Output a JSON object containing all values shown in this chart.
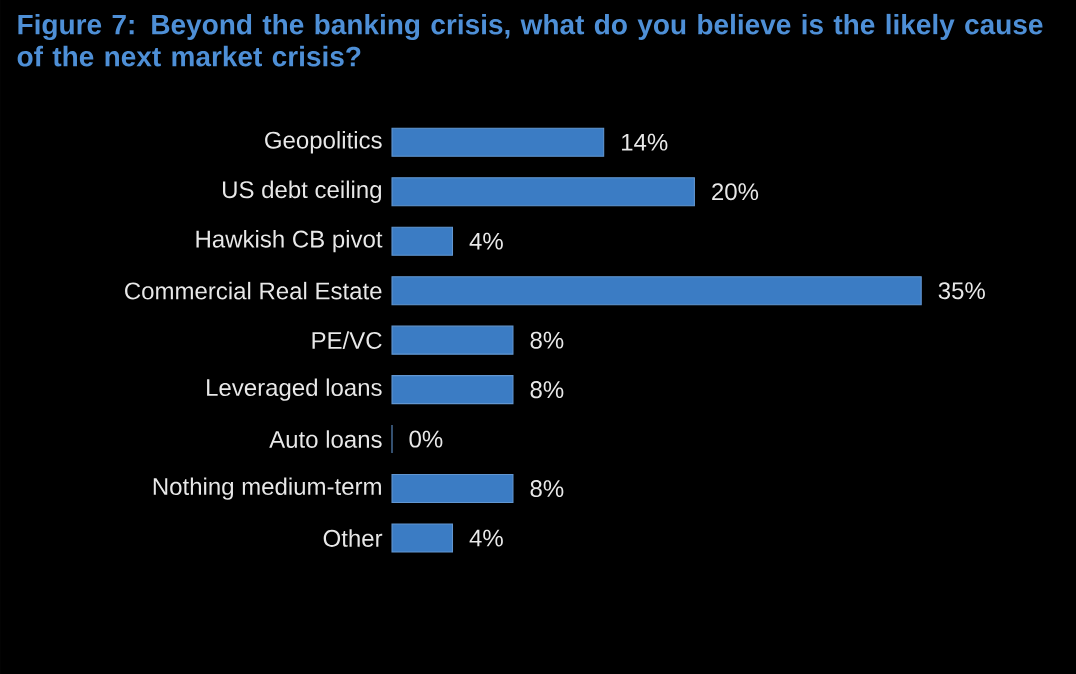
{
  "chart_data": {
    "type": "bar",
    "orientation": "horizontal",
    "title": "Figure 7: Beyond the banking crisis, what do you believe is the likely cause of the next market crisis?",
    "categories": [
      "Geopolitics",
      "US debt ceiling",
      "Hawkish CB pivot",
      "Commercial Real Estate",
      "PE/VC",
      "Leveraged loans",
      "Auto loans",
      "Nothing medium-term",
      "Other"
    ],
    "values": [
      14,
      20,
      4,
      35,
      8,
      8,
      0,
      8,
      4
    ],
    "value_labels": [
      "14%",
      "20%",
      "4%",
      "35%",
      "8%",
      "8%",
      "0%",
      "8%",
      "4%"
    ],
    "color": "#3b7cc4"
  }
}
